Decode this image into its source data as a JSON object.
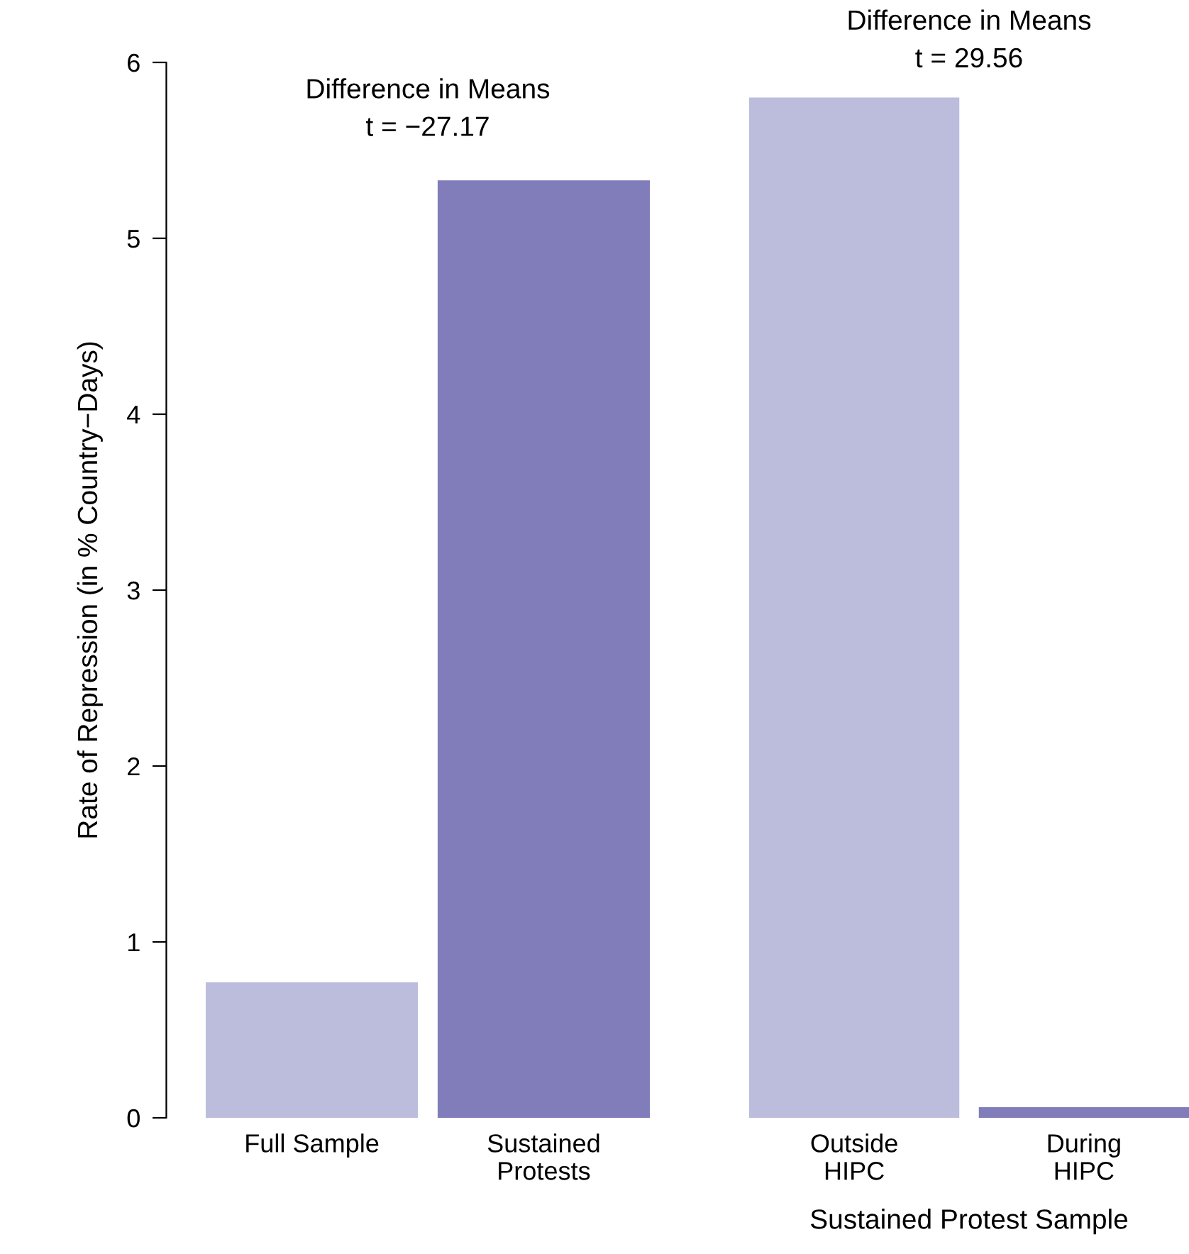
{
  "chart_data": [
    {
      "type": "bar",
      "ylabel": "Rate of Repression (in % Country−Days)",
      "categories": [
        "Full Sample",
        "Sustained\nProtests"
      ],
      "values": [
        0.77,
        5.33
      ],
      "colors": [
        "#bcbddc",
        "#807dba"
      ],
      "ylim": [
        0,
        6
      ],
      "yticks": [
        0,
        1,
        2,
        3,
        4,
        5,
        6
      ],
      "annotations": [
        "Difference in Means\nt = −27.17"
      ]
    },
    {
      "type": "bar",
      "xlabel": "Sustained Protest Sample",
      "categories": [
        "Outside\nHIPC",
        "During\nHIPC"
      ],
      "values": [
        5.8,
        0.06
      ],
      "colors": [
        "#bcbddc",
        "#807dba"
      ],
      "ylim": [
        0,
        6
      ],
      "yticks": [
        0,
        1,
        2,
        3,
        4,
        5,
        6
      ],
      "tick_labels": "x",
      "annotations": [
        "Difference in Means\nt = 29.56"
      ]
    }
  ]
}
